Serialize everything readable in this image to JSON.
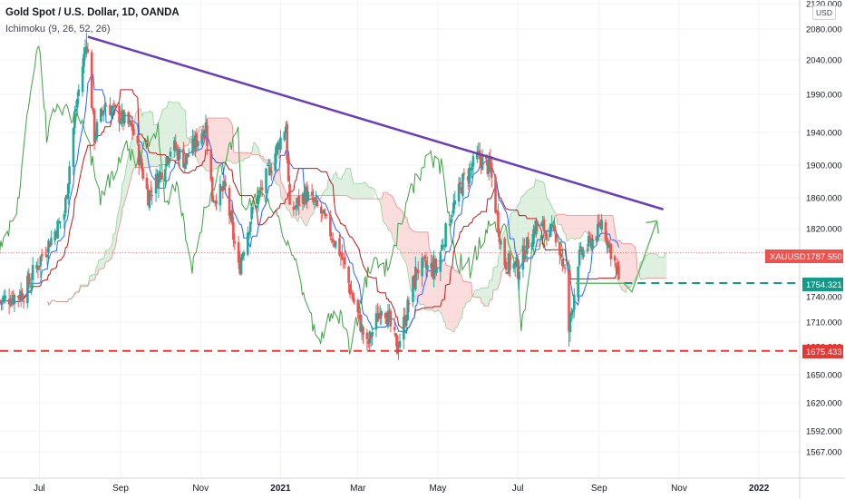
{
  "header": {
    "title": "Gold Spot / U.S. Dollar, 1D, OANDA",
    "indicator": "Ichimoku (9, 26, 52, 26)"
  },
  "price_axis": {
    "currency": "USD"
  },
  "chart_data": {
    "type": "candlestick",
    "title": "Gold Spot / U.S. Dollar, 1D, OANDA",
    "symbol": "XAUUSD",
    "timeframe": "1D",
    "source": "OANDA",
    "indicator": "Ichimoku (9, 26, 52, 26)",
    "y_axis": {
      "ticks": [
        1567,
        1592,
        1620,
        1650,
        1680,
        1710,
        1740,
        1780,
        1820,
        1860,
        1900,
        1940,
        1990,
        2040,
        2080,
        2120
      ],
      "tick_labels": [
        "1567.000",
        "1592.000",
        "1620.000",
        "1650.000",
        "1680.000",
        "1710.000",
        "1740.000",
        "1780.000",
        "1820.000",
        "1860.000",
        "1900.000",
        "1940.000",
        "1990.000",
        "2040.000",
        "2080.000",
        "2120.000"
      ],
      "currency": "USD"
    },
    "x_axis": {
      "tick_labels": [
        "Jul",
        "Sep",
        "Nov",
        "2021",
        "Mar",
        "May",
        "Jul",
        "Sep",
        "Nov",
        "2022"
      ]
    },
    "grid": true,
    "price_path": [
      [
        "2020-06-01",
        1735
      ],
      [
        "2020-06-20",
        1745
      ],
      [
        "2020-07-05",
        1790
      ],
      [
        "2020-07-20",
        1840
      ],
      [
        "2020-07-28",
        1960
      ],
      [
        "2020-08-06",
        2068
      ],
      [
        "2020-08-12",
        1935
      ],
      [
        "2020-08-20",
        1978
      ],
      [
        "2020-09-01",
        1960
      ],
      [
        "2020-09-10",
        1945
      ],
      [
        "2020-09-22",
        1862
      ],
      [
        "2020-10-01",
        1890
      ],
      [
        "2020-10-10",
        1925
      ],
      [
        "2020-10-20",
        1905
      ],
      [
        "2020-11-05",
        1950
      ],
      [
        "2020-11-10",
        1860
      ],
      [
        "2020-11-20",
        1870
      ],
      [
        "2020-11-30",
        1768
      ],
      [
        "2020-12-10",
        1840
      ],
      [
        "2020-12-20",
        1880
      ],
      [
        "2021-01-05",
        1950
      ],
      [
        "2021-01-08",
        1840
      ],
      [
        "2021-01-20",
        1865
      ],
      [
        "2021-02-01",
        1840
      ],
      [
        "2021-02-15",
        1790
      ],
      [
        "2021-03-01",
        1718
      ],
      [
        "2021-03-08",
        1680
      ],
      [
        "2021-03-20",
        1735
      ],
      [
        "2021-03-31",
        1678
      ],
      [
        "2021-04-15",
        1770
      ],
      [
        "2021-04-30",
        1770
      ],
      [
        "2021-05-10",
        1835
      ],
      [
        "2021-05-20",
        1880
      ],
      [
        "2021-06-01",
        1910
      ],
      [
        "2021-06-10",
        1895
      ],
      [
        "2021-06-20",
        1778
      ],
      [
        "2021-07-01",
        1770
      ],
      [
        "2021-07-15",
        1825
      ],
      [
        "2021-07-30",
        1812
      ],
      [
        "2021-08-06",
        1762
      ],
      [
        "2021-08-09",
        1700
      ],
      [
        "2021-08-16",
        1780
      ],
      [
        "2021-08-31",
        1815
      ],
      [
        "2021-09-03",
        1830
      ],
      [
        "2021-09-10",
        1790
      ],
      [
        "2021-09-16",
        1760
      ]
    ],
    "trendline": {
      "from": [
        "2020-08-07",
        2070
      ],
      "to": [
        "2021-10-20",
        1845
      ],
      "color": "#6a3fb5"
    },
    "support_levels": [
      {
        "value": 1754.321,
        "label": "1754.321",
        "color": "#129a8a",
        "style": "dashed"
      },
      {
        "value": 1675.433,
        "label": "1675.433",
        "color": "#e53935",
        "style": "dashed"
      }
    ],
    "last_price": {
      "symbol": "XAUUSD",
      "value": 1787.55,
      "label": "1787.550"
    },
    "colors": {
      "up": "#26a69a",
      "down": "#ef5350",
      "conversion_line": "#2962ff",
      "base_line": "#b71c1c",
      "lagging_span": "#43a047",
      "cloud_bull": "#c8e6c9",
      "cloud_bear": "#f8c6c6"
    }
  },
  "tags": {
    "last_symbol": "XAUUSD",
    "last_value": "1787.550",
    "support_green": "1754.321",
    "support_red": "1675.433"
  }
}
